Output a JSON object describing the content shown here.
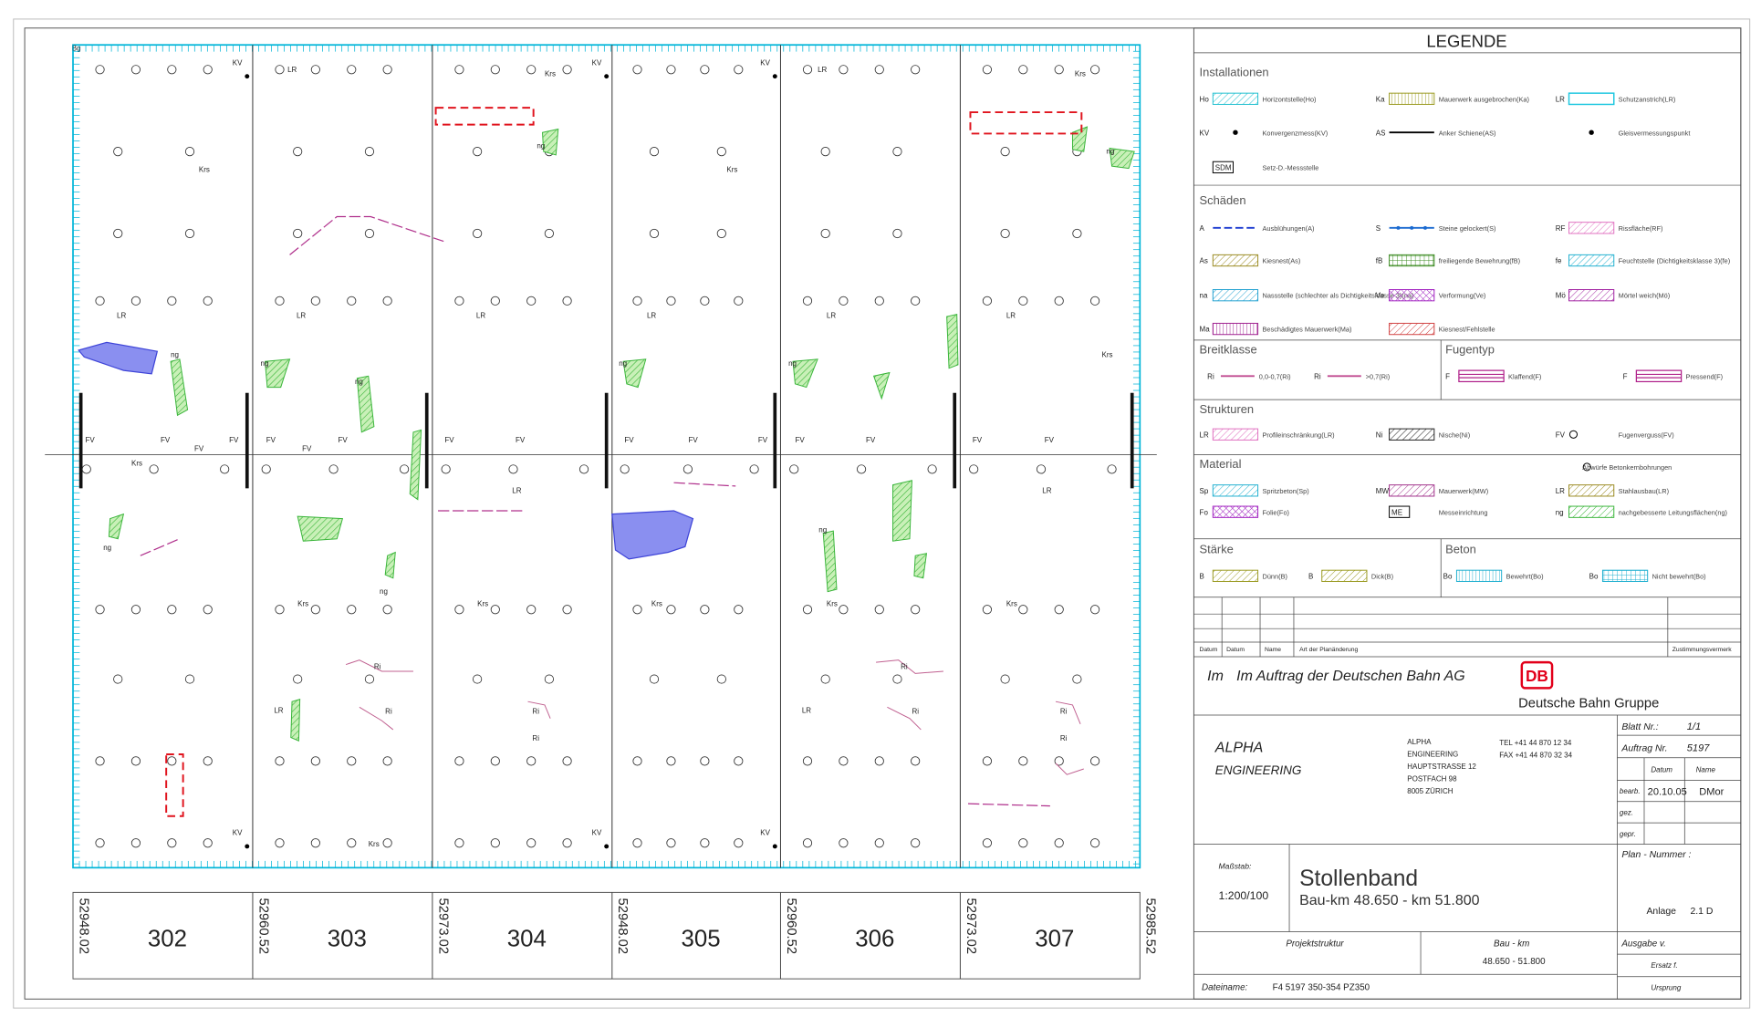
{
  "drawing": {
    "corner_label": "Bg",
    "annotations": [
      "KV",
      "KV",
      "KV",
      "KV",
      "KV",
      "KV",
      "LR",
      "LR",
      "LR",
      "LR",
      "LR",
      "LR",
      "LR",
      "LR",
      "LR",
      "LR",
      "LR",
      "LR",
      "ng",
      "ng",
      "ng",
      "ng",
      "ng",
      "ng",
      "ng",
      "ng",
      "ng",
      "ng",
      "Krs",
      "Krs",
      "Krs",
      "Krs",
      "Krs",
      "Krs",
      "Krs",
      "Krs",
      "Krs",
      "Krs",
      "Krs",
      "Krs",
      "FV",
      "FV",
      "FV",
      "FV",
      "FV",
      "FV",
      "FV",
      "FV",
      "FV",
      "FV",
      "FV",
      "FV",
      "FV",
      "FV",
      "FV",
      "FV",
      "Ri",
      "Ri",
      "Ri",
      "Ri",
      "Ri",
      "Ri",
      "Ri",
      "Ri"
    ],
    "sections": [
      "302",
      "303",
      "304",
      "305",
      "306",
      "307"
    ],
    "stations": [
      "52948.02",
      "52960.52",
      "52973.02",
      "52948.02",
      "52960.52",
      "52973.02",
      "52985.52"
    ]
  },
  "legend": {
    "title": "LEGENDE",
    "groups": [
      {
        "title": "Installationen",
        "items": [
          {
            "code": "Ho",
            "label": "Horizontstelle(Ho)"
          },
          {
            "code": "Ka",
            "label": "Mauerwerk ausgebrochen(Ka)"
          },
          {
            "code": "LR",
            "label": "Schutzanstrich(LR)"
          },
          {
            "code": "KV",
            "label": "Konvergenzmess(KV)"
          },
          {
            "code": "AS",
            "label": "Anker Schiene(AS)"
          },
          {
            "label": "Gleisvermessungspunkt"
          },
          {
            "code": "SDM",
            "label": "Setz-D.-Messstelle"
          }
        ]
      },
      {
        "title": "Schäden",
        "items": [
          {
            "code": "A",
            "label": "Ausblühungen(A)"
          },
          {
            "code": "S",
            "label": "Steine gelockert(S)"
          },
          {
            "code": "RF",
            "label": "Rissfläche(RF)"
          },
          {
            "code": "As",
            "label": "Kiesnest(As)"
          },
          {
            "code": "fB",
            "label": "freiliegende Bewehrung(fB)"
          },
          {
            "code": "fe",
            "label": "Feuchtstelle (Dichtigkeitsklasse 3)(fe)"
          },
          {
            "code": "na",
            "label": "Nassstelle (schlechter als Dichtigkeitsklasse 3)(na)"
          },
          {
            "code": "Ve",
            "label": "Verformung(Ve)"
          },
          {
            "code": "Mö",
            "label": "Mörtel weich(Mö)"
          },
          {
            "code": "Ma",
            "label": "Beschädigtes Mauerwerk(Ma)"
          },
          {
            "label": "Kiesnest/Fehlstelle"
          }
        ]
      },
      {
        "title": "Breitklasse",
        "items": [
          {
            "code": "Ri",
            "label": "0,0-0,7(Ri)"
          },
          {
            "code": "Ri",
            "label": ">0,7(Ri)"
          }
        ]
      },
      {
        "title": "Fugentyp",
        "items": [
          {
            "code": "F",
            "label": "Klaffend(F)"
          },
          {
            "code": "F",
            "label": "Pressend(F)"
          }
        ]
      },
      {
        "title": "Strukturen",
        "items": [
          {
            "code": "LR",
            "label": "Profileinschränkung(LR)"
          },
          {
            "code": "Ni",
            "label": "Nische(Ni)"
          },
          {
            "code": "FV",
            "label": "Fugenverguss(FV)"
          }
        ]
      },
      {
        "title": "Material",
        "items": [
          {
            "label": "Abwürfe Betonkernbohrungen"
          },
          {
            "code": "Sp",
            "label": "Spritzbeton(Sp)"
          },
          {
            "code": "MW",
            "label": "Mauerwerk(MW)"
          },
          {
            "code": "LR",
            "label": "Stahlausbau(LR)"
          },
          {
            "code": "Fo",
            "label": "Folie(Fo)"
          },
          {
            "code": "ME",
            "label": "Messeinrichtung"
          },
          {
            "code": "ng",
            "label": "nachgebesserte Leitungsflächen(ng)"
          }
        ]
      },
      {
        "title": "Stärke",
        "items": [
          {
            "code": "B",
            "label": "Dünn(B)"
          },
          {
            "code": "B",
            "label": "Dick(B)"
          }
        ]
      },
      {
        "title": "Beton",
        "items": [
          {
            "code": "Bo",
            "label": "Bewehrt(Bo)"
          },
          {
            "code": "Bo",
            "label": "Nicht bewehrt(Bo)"
          }
        ]
      }
    ]
  },
  "revision_table": {
    "headers": [
      "Datum",
      "Datum",
      "Name",
      "Art der Planänderung",
      "Zustimmungsvermerk"
    ]
  },
  "client": {
    "prefix": "Im",
    "text": "Im Auftrag der Deutschen Bahn AG",
    "logo": "DB",
    "group": "Deutsche Bahn Gruppe"
  },
  "company": {
    "name": [
      "ALPHA",
      "ENGINEERING"
    ],
    "address": [
      "ALPHA",
      "ENGINEERING",
      "HAUPTSTRASSE 12",
      "POSTFACH 98",
      "8005 ZÜRICH"
    ],
    "tel": "TEL +41 44 870 12 34",
    "fax": "FAX +41 44 870 32 34"
  },
  "sheet": {
    "blatt_label": "Blatt Nr.:",
    "blatt": "1/1",
    "auftrag_label": "Auftrag Nr.",
    "auftrag": "5197",
    "datum_label": "Datum",
    "name_label": "Name",
    "bearb_label": "bearb.",
    "bearb_datum": "20.10.05",
    "bearb_name": "DMor",
    "gez_label": "gez.",
    "gepr_label": "gepr.",
    "plan_label": "Plan - Nummer :",
    "anlage_label": "Anlage",
    "anlage": "2.1 D",
    "ausgabe_label": "Ausgabe v.",
    "ersatz_label": "Ersatz f.",
    "ursprung_label": "Ursprung"
  },
  "title": {
    "scale_label": "Maßstab:",
    "scale": "1:200/100",
    "name": "Stollenband",
    "subtitle": "Bau-km 48.650 - km 51.800"
  },
  "footer": {
    "projekt_label": "Projektstruktur",
    "baukm_label": "Bau - km",
    "baukm": "48.650 - 51.800",
    "file_label": "Dateiname:",
    "file": "F4 5197 350-354 PZ350"
  }
}
